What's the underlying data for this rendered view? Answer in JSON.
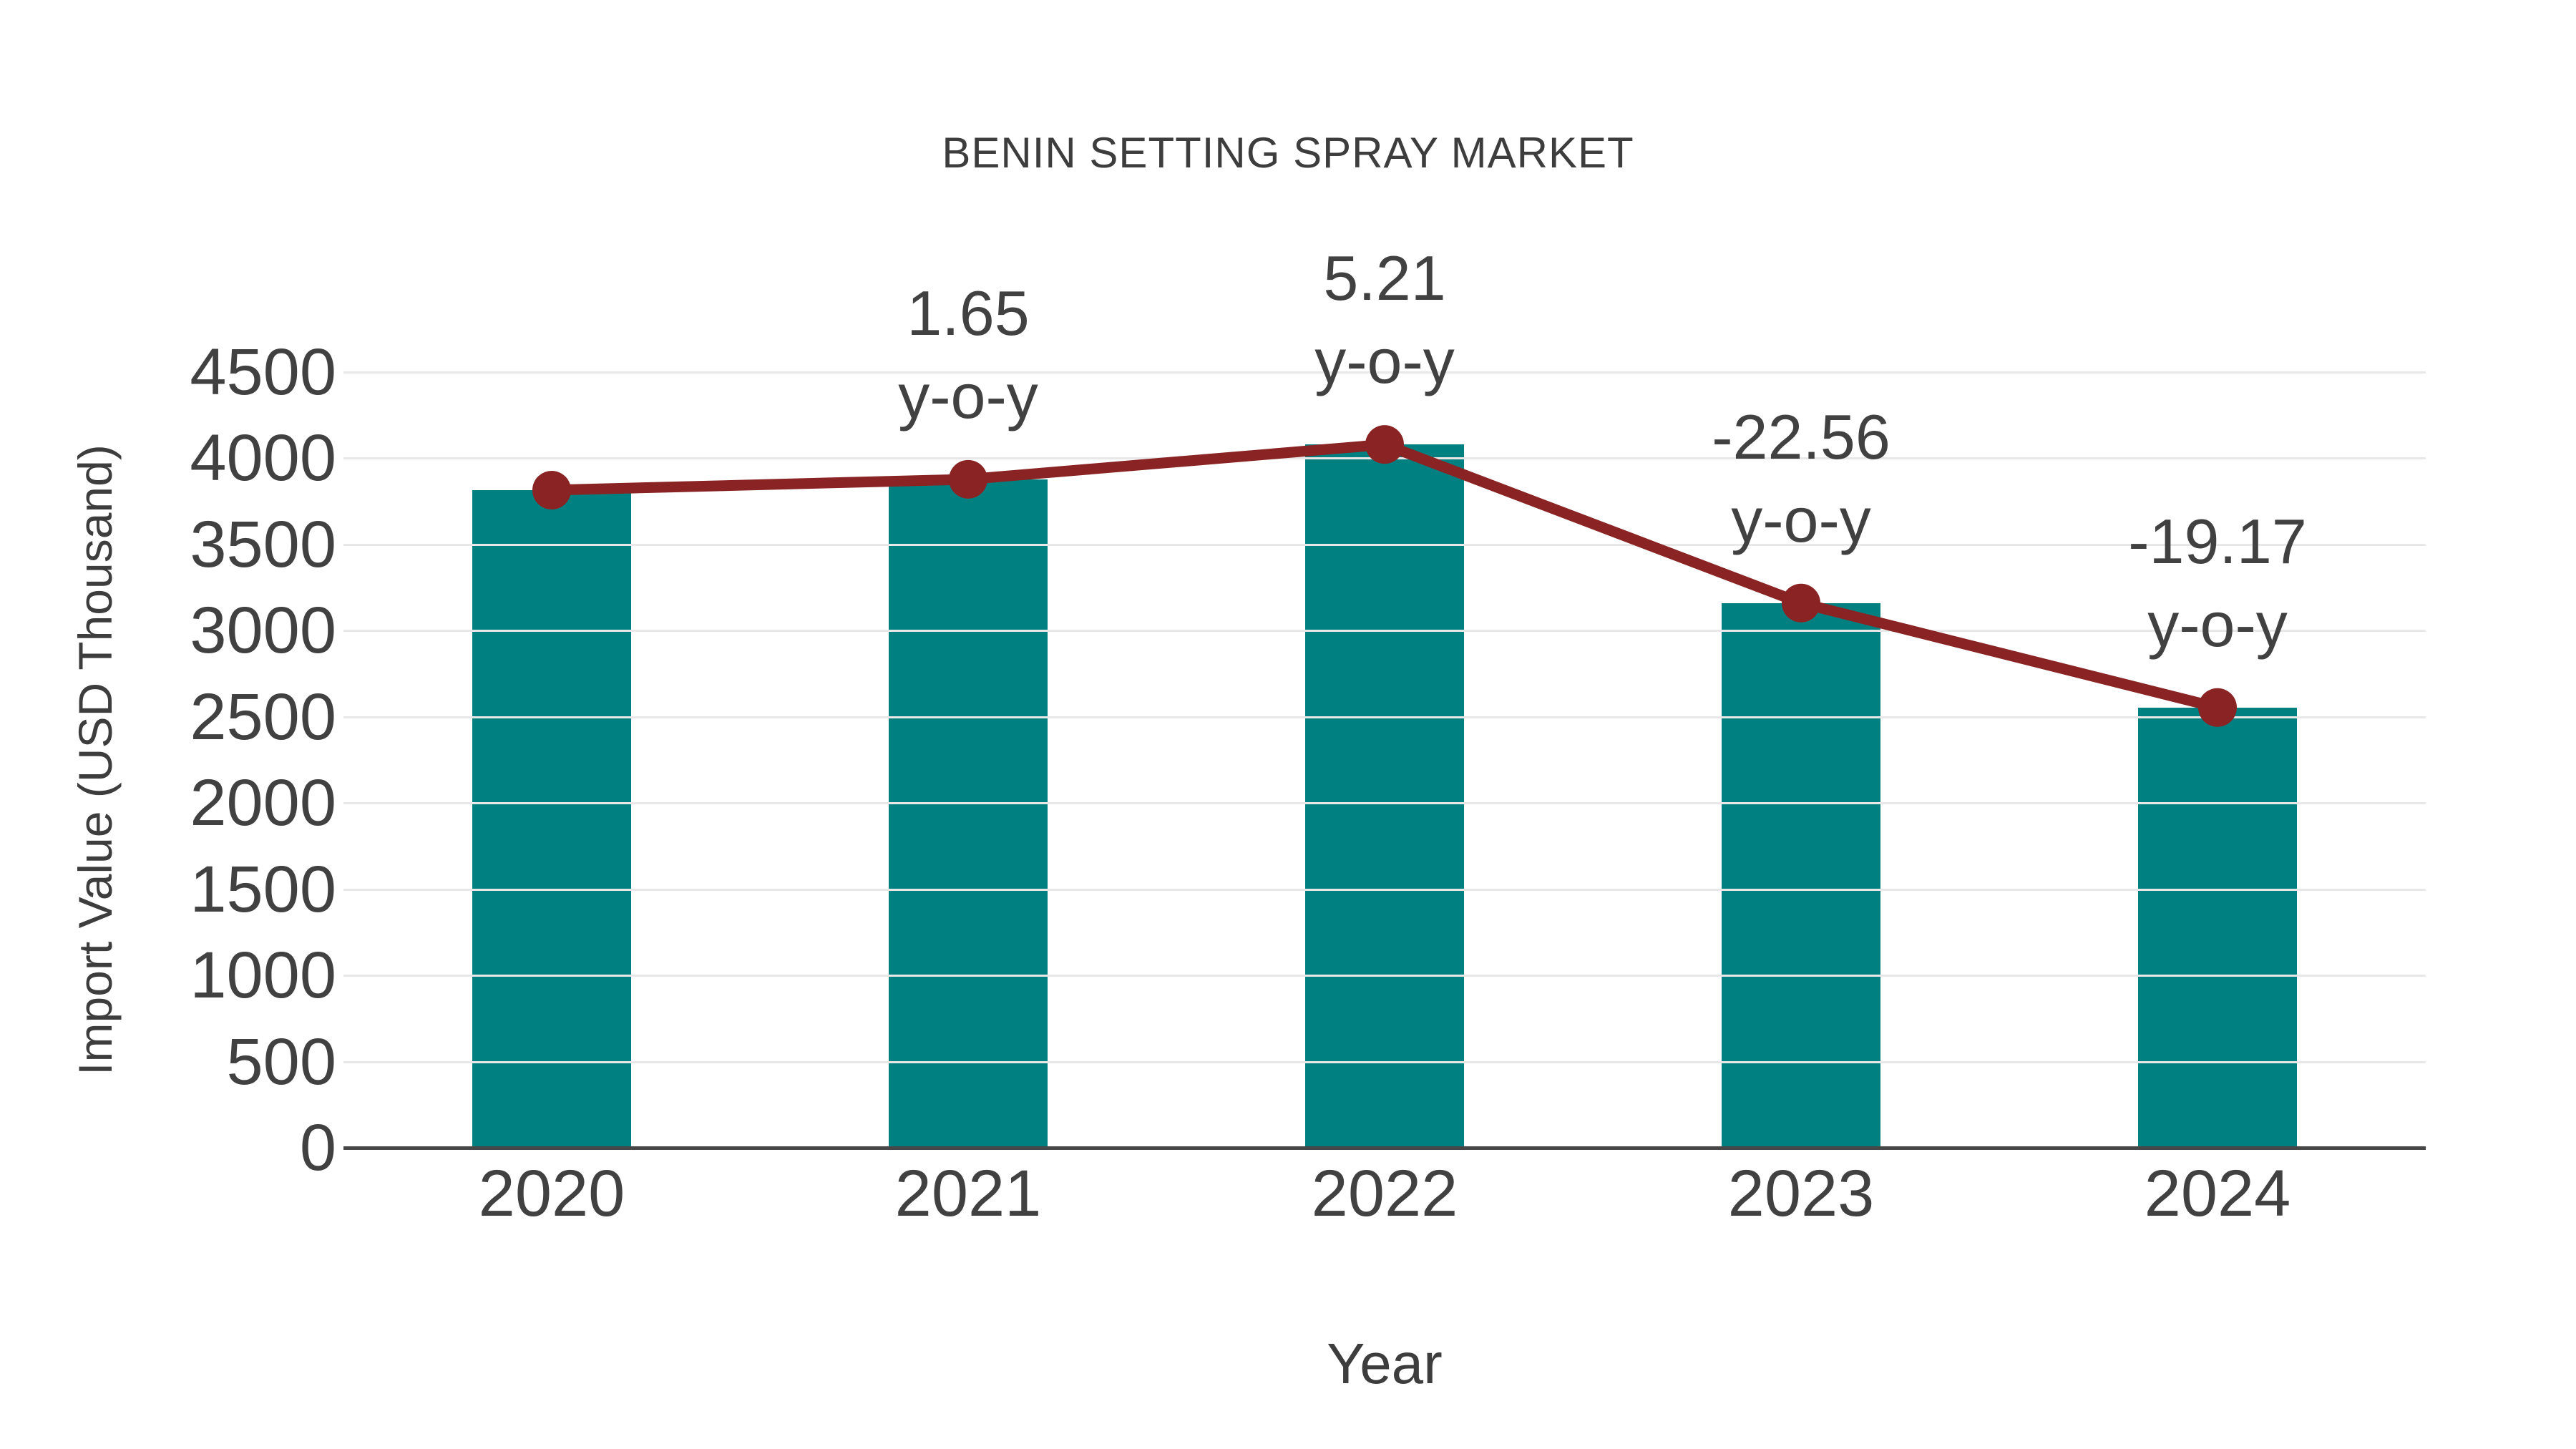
{
  "title": "BENIN SETTING SPRAY MARKET",
  "chart_data": {
    "type": "bar",
    "title": "BENIN SETTING SPRAY MARKET",
    "xlabel": "Year",
    "ylabel": "Import Value (USD Thousand)",
    "categories": [
      "2020",
      "2021",
      "2022",
      "2023",
      "2024"
    ],
    "series": [
      {
        "name": "Import Value (USD Thousand)",
        "type": "bar",
        "color": "#008080",
        "values": [
          3815,
          3878,
          4080,
          3160,
          2554
        ]
      },
      {
        "name": "y-o-y trend line",
        "type": "line",
        "color": "#8a2323",
        "marker_color": "#8a2323",
        "values": [
          3815,
          3878,
          4080,
          3160,
          2554
        ]
      }
    ],
    "yoy_percent": [
      null,
      1.65,
      5.21,
      -22.56,
      -19.17
    ],
    "annotations": [
      {
        "category": "2021",
        "value_label": "1.65",
        "suffix": "y-o-y"
      },
      {
        "category": "2022",
        "value_label": "5.21",
        "suffix": "y-o-y"
      },
      {
        "category": "2023",
        "value_label": "-22.56",
        "suffix": "y-o-y"
      },
      {
        "category": "2024",
        "value_label": "-19.17",
        "suffix": "y-o-y"
      }
    ],
    "ylim": [
      0,
      4500
    ],
    "ytick_step": 500,
    "grid": true,
    "legend": "none",
    "colors": {
      "bar": "#008080",
      "line": "#8a2323",
      "text": "#3d3d3d",
      "tick_text": "#414141",
      "gridline": "#e8e8e8",
      "axis_line": "#474747",
      "background": "#ffffff"
    }
  }
}
